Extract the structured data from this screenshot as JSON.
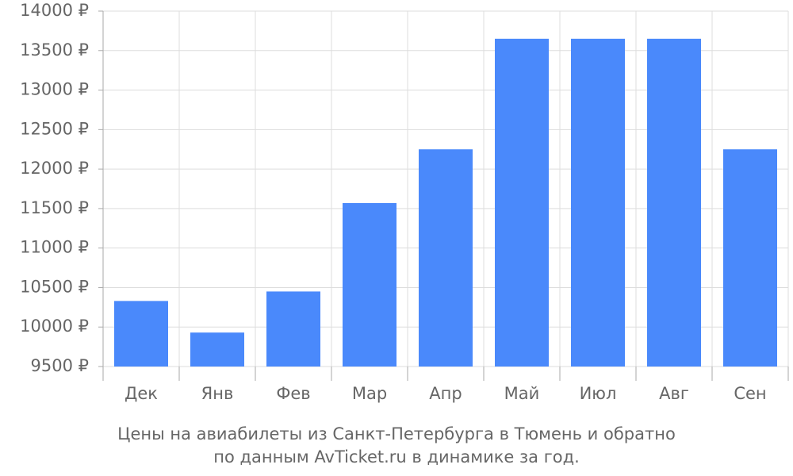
{
  "chart_data": {
    "type": "bar",
    "title": "Цены на авиабилеты из Санкт-Петербурга в Тюмень и обратно",
    "subtitle": "по данным AvTicket.ru в динамике за год.",
    "categories": [
      "Дек",
      "Янв",
      "Фев",
      "Мар",
      "Апр",
      "Май",
      "Июл",
      "Авг",
      "Сен"
    ],
    "values": [
      10330,
      9930,
      10450,
      11570,
      12250,
      13650,
      13650,
      13650,
      12250
    ],
    "color": "#4a89fb",
    "ylim": [
      9500,
      14000
    ],
    "yticks": [
      {
        "value": 9500,
        "label": "9500 ₽"
      },
      {
        "value": 10000,
        "label": "10000 ₽"
      },
      {
        "value": 10500,
        "label": "10500 ₽"
      },
      {
        "value": 11000,
        "label": "11000 ₽"
      },
      {
        "value": 11500,
        "label": "11500 ₽"
      },
      {
        "value": 12000,
        "label": "12000 ₽"
      },
      {
        "value": 12500,
        "label": "12500 ₽"
      },
      {
        "value": 13000,
        "label": "13000 ₽"
      },
      {
        "value": 13500,
        "label": "13500 ₽"
      },
      {
        "value": 14000,
        "label": "14000 ₽"
      }
    ],
    "grid": true
  }
}
